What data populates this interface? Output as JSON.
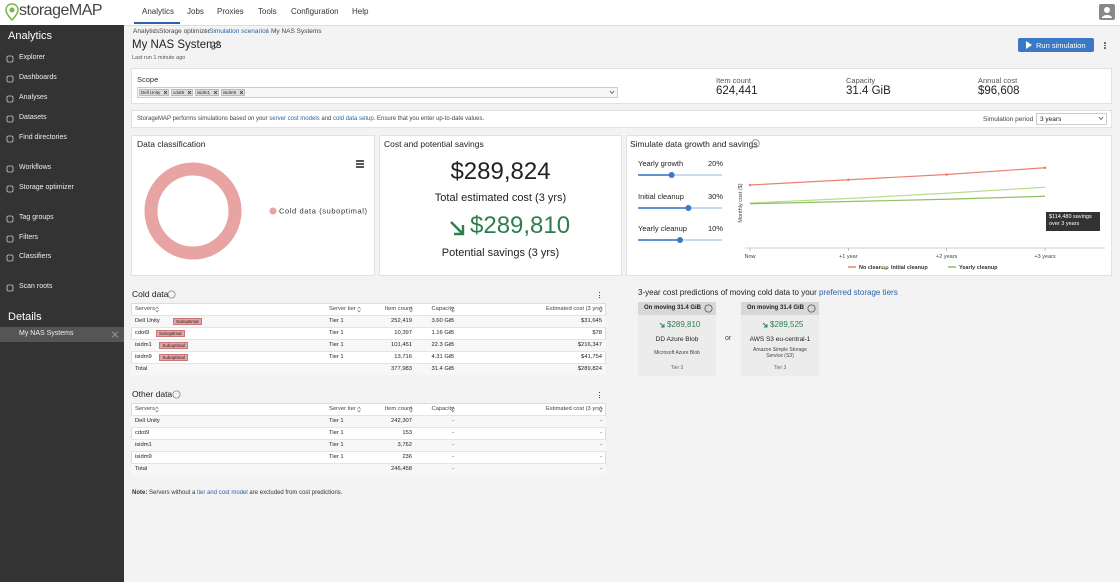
{
  "nav": {
    "logo": "storageMAP",
    "tabs": [
      "Analytics",
      "Jobs",
      "Proxies",
      "Tools",
      "Configuration",
      "Help"
    ]
  },
  "sidebar": {
    "title": "Analytics",
    "items": [
      "Explorer",
      "Dashboards",
      "Analyses",
      "Datasets",
      "Find directories",
      "Workflows",
      "Storage optimizer",
      "Tag groups",
      "Filters",
      "Classifiers",
      "Scan roots"
    ],
    "details_title": "Details",
    "details_item": "My NAS Systems"
  },
  "breadcrumb": {
    "items": [
      "Analytics",
      "Storage optimizer",
      "Simulation scenarios",
      "My NAS Systems"
    ],
    "separator": "/"
  },
  "header": {
    "title": "My NAS Systems",
    "last_run": "Last run 1 minute ago",
    "run_button": "Run simulation"
  },
  "scope": {
    "label": "Scope",
    "chips": [
      "Dell Unity",
      "cdot9",
      "isidm1",
      "isidm9"
    ]
  },
  "summary": [
    {
      "label": "Item count",
      "value": "624,441"
    },
    {
      "label": "Capacity",
      "value": "31.4 GiB"
    },
    {
      "label": "Annual cost",
      "value": "$96,608"
    }
  ],
  "info": {
    "parts": [
      "StorageMAP performs simulations based on your ",
      "server cost models",
      " and ",
      "cold data setup",
      ". Ensure that you enter up-to-date values."
    ],
    "period_label": "Simulation period",
    "period_value": "3 years"
  },
  "classification": {
    "title": "Data classification"
  },
  "cost": {
    "title": "Cost and potential savings",
    "total": "$289,824",
    "total_label": "Total estimated cost (3 yrs)",
    "savings": "$289,810",
    "savings_label": "Potential savings (3 yrs)"
  },
  "simulate": {
    "title": "Simulate data growth and savings",
    "tooltip": "$114,480 savings over 3 years",
    "sliders": [
      {
        "label": "Yearly growth",
        "value": 20,
        "value_label": "20%",
        "range": [
          0,
          50
        ]
      },
      {
        "label": "Initial cleanup",
        "value": 30,
        "value_label": "30%",
        "range": [
          0,
          50
        ]
      },
      {
        "label": "Yearly cleanup",
        "value": 10,
        "value_label": "10%",
        "range": [
          0,
          20
        ]
      }
    ]
  },
  "chart_data": [
    {
      "type": "pie",
      "categories": [
        "Cold data (suboptimal)"
      ],
      "values": [
        100
      ],
      "colors": [
        "#e8a3a3"
      ],
      "legend": "right"
    },
    {
      "type": "line",
      "y_label": "Monthly cost ($)",
      "categories": [
        "Now",
        "+1 year",
        "+2 years",
        "+3 years"
      ],
      "ylim": [
        0,
        12000
      ],
      "legend": "bottom",
      "series": [
        {
          "name": "No cleanup",
          "color": "#e8826e",
          "values": [
            8400,
            9100,
            9800,
            10700
          ]
        },
        {
          "name": "Initial cleanup",
          "color": "#b9dc8c",
          "values": [
            6000,
            6600,
            7300,
            8100
          ]
        },
        {
          "name": "Yearly cleanup",
          "color": "#8cc063",
          "values": [
            5900,
            6200,
            6500,
            6900
          ]
        }
      ]
    }
  ],
  "cold_table": {
    "title": "Cold data",
    "columns": [
      "Servers",
      "Server tier",
      "Item count",
      "Capacity",
      "Estimated cost (3 yrs)"
    ],
    "rows": [
      {
        "server": "Dell Unity",
        "badge": "Suboptimal",
        "tier": "Tier 1",
        "items": "252,419",
        "capacity": "3.60 GiB",
        "cost": "$31,645"
      },
      {
        "server": "cdot9",
        "badge": "Suboptimal",
        "tier": "Tier 1",
        "items": "10,397",
        "capacity": "1.16 GiB",
        "cost": "$78"
      },
      {
        "server": "isidm1",
        "badge": "Suboptimal",
        "tier": "Tier 1",
        "items": "101,451",
        "capacity": "22.3 GiB",
        "cost": "$216,347"
      },
      {
        "server": "isidm9",
        "badge": "Suboptimal",
        "tier": "Tier 1",
        "items": "13,716",
        "capacity": "4.31 GiB",
        "cost": "$41,754"
      }
    ],
    "total": {
      "server": "Total",
      "items": "377,983",
      "capacity": "31.4 GiB",
      "cost": "$289,824"
    }
  },
  "other_table": {
    "title": "Other data",
    "columns": [
      "Servers",
      "Server tier",
      "Item count",
      "Capacity",
      "Estimated cost (3 yrs)"
    ],
    "rows": [
      {
        "server": "Dell Unity",
        "tier": "Tier 1",
        "items": "242,307",
        "capacity": "-",
        "cost": "-"
      },
      {
        "server": "cdot9",
        "tier": "Tier 1",
        "items": "153",
        "capacity": "-",
        "cost": "-"
      },
      {
        "server": "isidm1",
        "tier": "Tier 1",
        "items": "3,762",
        "capacity": "-",
        "cost": "-"
      },
      {
        "server": "isidm9",
        "tier": "Tier 1",
        "items": "236",
        "capacity": "-",
        "cost": "-"
      }
    ],
    "total": {
      "server": "Total",
      "items": "246,458",
      "capacity": "-",
      "cost": "-"
    }
  },
  "note": {
    "label": "Note:",
    "parts": [
      " Servers without a ",
      "tier and cost model",
      " are excluded from cost predictions."
    ]
  },
  "predictions": {
    "title": "3-year cost predictions of moving cold data to your ",
    "link": "preferred storage tiers",
    "or": "or",
    "cards": [
      {
        "header": "On moving 31.4 GiB",
        "price": "$289,810",
        "name": "DD Azure Blob",
        "provider": "Microsoft Azure Blob",
        "tier": "Tier 3"
      },
      {
        "header": "On moving 31.4 GiB",
        "price": "$289,525",
        "name": "AWS S3 eu-central-1",
        "provider": "Amazon Simple Storage Service (S3)",
        "tier": "Tier 3"
      }
    ]
  }
}
